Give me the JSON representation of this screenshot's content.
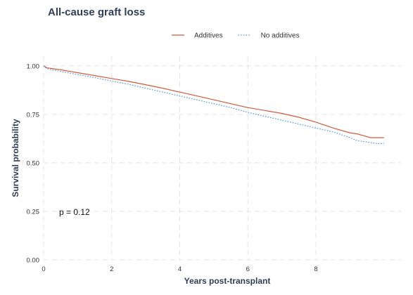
{
  "chart_data": {
    "type": "line",
    "title": "All-cause graft loss",
    "xlabel": "Years post-transplant",
    "ylabel": "Survival probability",
    "xlim": [
      0,
      10.5
    ],
    "ylim": [
      0,
      1.05
    ],
    "x_ticks": [
      0,
      2,
      4,
      6,
      8
    ],
    "y_ticks": [
      0.0,
      0.25,
      0.5,
      0.75,
      1.0
    ],
    "x_tick_labels": [
      "0",
      "2",
      "4",
      "6",
      "8"
    ],
    "y_tick_labels": [
      "0.00",
      "0.25",
      "0.50",
      "0.75",
      "1.00"
    ],
    "grid": true,
    "legend_position": "top",
    "annotation": "p = 0.12",
    "series": [
      {
        "name": "Additives",
        "color": "#d05a3c",
        "line_style": "solid",
        "x": [
          0,
          0.1,
          0.3,
          0.5,
          1.0,
          1.5,
          2.0,
          2.5,
          3.0,
          3.5,
          4.0,
          4.5,
          5.0,
          5.5,
          6.0,
          6.5,
          7.0,
          7.5,
          8.0,
          8.5,
          9.0,
          9.2,
          9.4,
          9.6,
          9.8,
          10.0
        ],
        "y": [
          1.0,
          0.99,
          0.985,
          0.98,
          0.965,
          0.95,
          0.935,
          0.92,
          0.903,
          0.885,
          0.865,
          0.845,
          0.825,
          0.805,
          0.785,
          0.77,
          0.755,
          0.735,
          0.71,
          0.68,
          0.655,
          0.65,
          0.64,
          0.63,
          0.63,
          0.63
        ]
      },
      {
        "name": "No additives",
        "color": "#5b9bd5",
        "line_style": "dotted",
        "x": [
          0,
          0.1,
          0.3,
          0.5,
          1.0,
          1.5,
          2.0,
          2.5,
          3.0,
          3.5,
          4.0,
          4.5,
          5.0,
          5.5,
          6.0,
          6.5,
          7.0,
          7.5,
          8.0,
          8.5,
          9.0,
          9.2,
          9.4,
          9.6,
          9.8,
          10.0
        ],
        "y": [
          1.0,
          0.985,
          0.978,
          0.972,
          0.955,
          0.94,
          0.922,
          0.905,
          0.885,
          0.865,
          0.845,
          0.825,
          0.805,
          0.785,
          0.76,
          0.74,
          0.72,
          0.7,
          0.68,
          0.66,
          0.63,
          0.615,
          0.61,
          0.605,
          0.6,
          0.6
        ]
      }
    ]
  }
}
